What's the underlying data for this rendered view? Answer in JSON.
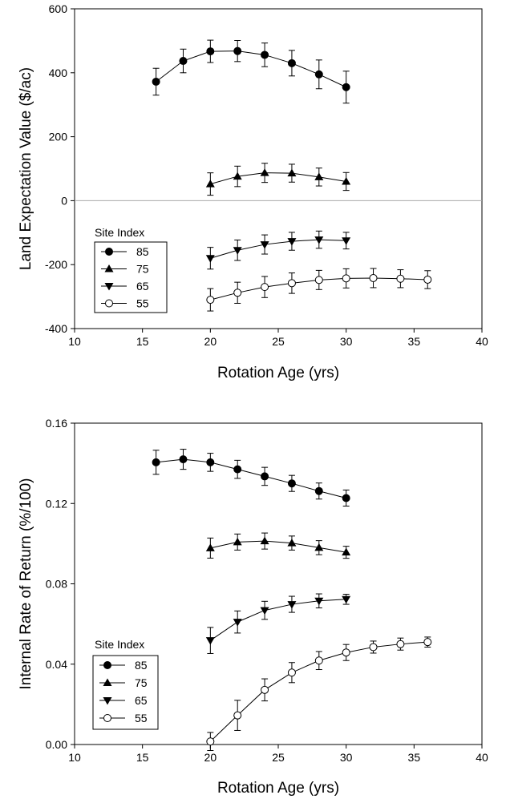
{
  "chart_data": [
    {
      "type": "line",
      "xlabel": "Rotation Age (yrs)",
      "ylabel": "Land Expectation Value ($/ac)",
      "xlim": [
        10,
        40
      ],
      "ylim": [
        -400,
        600
      ],
      "xticks": [
        10,
        15,
        20,
        25,
        30,
        35,
        40
      ],
      "yticks": [
        -400,
        -200,
        0,
        200,
        400,
        600
      ],
      "ytick_labels": [
        "-400",
        "-200",
        "0",
        "200",
        "400",
        "600"
      ],
      "reference_line_y": 0,
      "legend": {
        "title": "Site Index",
        "placement": "lower-left"
      },
      "series": [
        {
          "name": "85",
          "marker": "circle-filled",
          "x": [
            16,
            18,
            20,
            22,
            24,
            26,
            28,
            30
          ],
          "y": [
            372,
            437,
            467,
            468,
            456,
            430,
            395,
            355
          ],
          "err": [
            42,
            37,
            35,
            33,
            37,
            40,
            45,
            50
          ]
        },
        {
          "name": "75",
          "marker": "triangle-up",
          "x": [
            20,
            22,
            24,
            26,
            28,
            30
          ],
          "y": [
            52,
            76,
            87,
            86,
            74,
            60
          ],
          "err": [
            35,
            32,
            30,
            28,
            28,
            28
          ]
        },
        {
          "name": "65",
          "marker": "triangle-down",
          "x": [
            20,
            22,
            24,
            26,
            28,
            30
          ],
          "y": [
            -180,
            -155,
            -137,
            -127,
            -122,
            -125
          ],
          "err": [
            34,
            32,
            30,
            28,
            27,
            26
          ]
        },
        {
          "name": "55",
          "marker": "circle-open",
          "x": [
            20,
            22,
            24,
            26,
            28,
            30,
            32,
            34,
            36
          ],
          "y": [
            -310,
            -288,
            -270,
            -258,
            -248,
            -243,
            -242,
            -244,
            -247
          ],
          "err": [
            35,
            33,
            33,
            32,
            30,
            30,
            30,
            28,
            28
          ]
        }
      ]
    },
    {
      "type": "line",
      "xlabel": "Rotation Age (yrs)",
      "ylabel": "Internal Rate of Return (%/100)",
      "xlim": [
        10,
        40
      ],
      "ylim": [
        0,
        0.16
      ],
      "xticks": [
        10,
        15,
        20,
        25,
        30,
        35,
        40
      ],
      "yticks": [
        0,
        0.04,
        0.08,
        0.12,
        0.16
      ],
      "ytick_labels": [
        "0.00",
        "0.04",
        "0.08",
        "0.12",
        "0.16"
      ],
      "legend": {
        "title": "Site Index",
        "placement": "lower-left"
      },
      "series": [
        {
          "name": "85",
          "marker": "circle-filled",
          "x": [
            16,
            18,
            20,
            22,
            24,
            26,
            28,
            30
          ],
          "y": [
            0.1405,
            0.142,
            0.1405,
            0.137,
            0.1335,
            0.13,
            0.1262,
            0.1227
          ],
          "err": [
            0.006,
            0.005,
            0.0045,
            0.0045,
            0.0045,
            0.004,
            0.004,
            0.004
          ]
        },
        {
          "name": "75",
          "marker": "triangle-up",
          "x": [
            20,
            22,
            24,
            26,
            28,
            30
          ],
          "y": [
            0.0978,
            0.1008,
            0.1013,
            0.1003,
            0.098,
            0.0957
          ],
          "err": [
            0.005,
            0.004,
            0.004,
            0.0035,
            0.0035,
            0.003
          ]
        },
        {
          "name": "65",
          "marker": "triangle-down",
          "x": [
            20,
            22,
            24,
            26,
            28,
            30
          ],
          "y": [
            0.0518,
            0.061,
            0.0668,
            0.0698,
            0.0715,
            0.0723
          ],
          "err": [
            0.0065,
            0.0055,
            0.0045,
            0.004,
            0.0035,
            0.0025
          ]
        },
        {
          "name": "55",
          "marker": "circle-open",
          "x": [
            20,
            22,
            24,
            26,
            28,
            30,
            32,
            34,
            36
          ],
          "y": [
            0.0015,
            0.0145,
            0.0272,
            0.0358,
            0.0418,
            0.0458,
            0.0485,
            0.05,
            0.051
          ],
          "err": [
            0.0045,
            0.0075,
            0.0055,
            0.005,
            0.0045,
            0.004,
            0.003,
            0.003,
            0.0025
          ]
        }
      ]
    }
  ]
}
